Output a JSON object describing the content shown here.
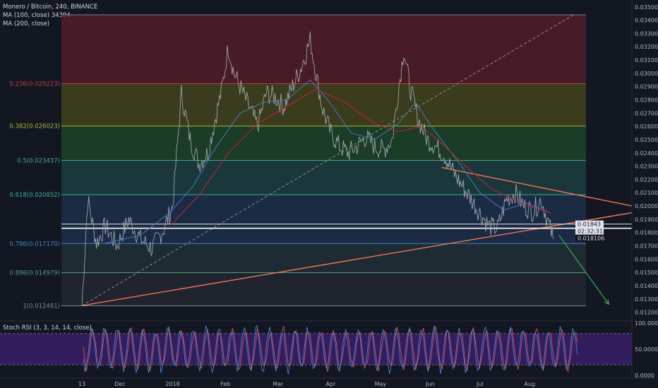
{
  "header": {
    "symbol_line": "Monero / Bitcoin, 240, BINANCE",
    "ma100_line": "MA (100, close) 34394",
    "ma200_line": "MA (200, close)"
  },
  "price_labels": {
    "current_price": "0.01843",
    "countdown": "02:32:31",
    "ma_value": "0.018106"
  },
  "rsi_panel": {
    "legend": "Stoch RSI (3, 3, 14, 14, close)",
    "ticks": [
      "100.0000",
      "50.0000",
      "0.0000"
    ]
  },
  "colors": {
    "background": "#131722",
    "price_line": "#d1d4dc",
    "ma100": "#4a79b8",
    "ma200": "#c0203a",
    "trendline": "#f2755a",
    "projection_arrow": "#3dab5c",
    "stoch_k": "#4a8fe7",
    "stoch_d": "#e35b5b",
    "rsi_band": "#3b1f6e"
  },
  "chart_data": {
    "type": "line",
    "title": "Monero / Bitcoin, 240, BINANCE",
    "x_ticks": [
      "13",
      "Dec",
      "2018",
      "Feb",
      "Mar",
      "Apr",
      "May",
      "Jun",
      "Jul",
      "Aug"
    ],
    "y_ticks": [
      "0.035000",
      "0.034000",
      "0.033000",
      "0.032000",
      "0.031000",
      "0.030000",
      "0.029000",
      "0.028000",
      "0.027000",
      "0.026000",
      "0.025000",
      "0.024000",
      "0.023000",
      "0.022000",
      "0.021000",
      "0.020000",
      "0.019000",
      "0.018000",
      "0.017000",
      "0.016000",
      "0.015000",
      "0.014000",
      "0.013000",
      "0.012000"
    ],
    "ylim": [
      0.0115,
      0.0352
    ],
    "fib_levels": [
      {
        "label": "0.236(0.029223)",
        "value": 0.029223,
        "color": "#c13b4b"
      },
      {
        "label": "0.382(0.026023)",
        "value": 0.026023,
        "color": "#a3b93a"
      },
      {
        "label": "0.5(0.023437)",
        "value": 0.023437,
        "color": "#46b07a"
      },
      {
        "label": "0.618(0.020852)",
        "value": 0.020852,
        "color": "#3fa7a0"
      },
      {
        "label": "0.786(0.017170)",
        "value": 0.01717,
        "color": "#3d86c4"
      },
      {
        "label": "0.886(0.014979)",
        "value": 0.014979,
        "color": "#4f9e7a"
      },
      {
        "label": "1(0.012481)",
        "value": 0.012481,
        "color": "#7a8a93"
      }
    ],
    "fib_top": 0.0344,
    "close_series": [
      {
        "x": 0,
        "y": 0.0125
      },
      {
        "x": 2,
        "y": 0.0205
      },
      {
        "x": 5,
        "y": 0.0172
      },
      {
        "x": 8,
        "y": 0.0185
      },
      {
        "x": 12,
        "y": 0.017
      },
      {
        "x": 16,
        "y": 0.019
      },
      {
        "x": 20,
        "y": 0.0175
      },
      {
        "x": 24,
        "y": 0.0168
      },
      {
        "x": 28,
        "y": 0.0183
      },
      {
        "x": 31,
        "y": 0.02
      },
      {
        "x": 34,
        "y": 0.0285
      },
      {
        "x": 37,
        "y": 0.025
      },
      {
        "x": 40,
        "y": 0.0232
      },
      {
        "x": 43,
        "y": 0.024
      },
      {
        "x": 45,
        "y": 0.026
      },
      {
        "x": 48,
        "y": 0.029
      },
      {
        "x": 50,
        "y": 0.032
      },
      {
        "x": 52,
        "y": 0.03
      },
      {
        "x": 55,
        "y": 0.0285
      },
      {
        "x": 58,
        "y": 0.027
      },
      {
        "x": 60,
        "y": 0.026
      },
      {
        "x": 63,
        "y": 0.0285
      },
      {
        "x": 66,
        "y": 0.0282
      },
      {
        "x": 69,
        "y": 0.0275
      },
      {
        "x": 72,
        "y": 0.029
      },
      {
        "x": 75,
        "y": 0.0305
      },
      {
        "x": 78,
        "y": 0.0325
      },
      {
        "x": 80,
        "y": 0.03
      },
      {
        "x": 82,
        "y": 0.0275
      },
      {
        "x": 85,
        "y": 0.0255
      },
      {
        "x": 88,
        "y": 0.0245
      },
      {
        "x": 91,
        "y": 0.024
      },
      {
        "x": 94,
        "y": 0.0245
      },
      {
        "x": 97,
        "y": 0.0252
      },
      {
        "x": 100,
        "y": 0.0245
      },
      {
        "x": 103,
        "y": 0.0242
      },
      {
        "x": 106,
        "y": 0.025
      },
      {
        "x": 108,
        "y": 0.0285
      },
      {
        "x": 110,
        "y": 0.0318
      },
      {
        "x": 112,
        "y": 0.029
      },
      {
        "x": 115,
        "y": 0.0265
      },
      {
        "x": 118,
        "y": 0.025
      },
      {
        "x": 121,
        "y": 0.0245
      },
      {
        "x": 124,
        "y": 0.0238
      },
      {
        "x": 127,
        "y": 0.0225
      },
      {
        "x": 130,
        "y": 0.0215
      },
      {
        "x": 133,
        "y": 0.0205
      },
      {
        "x": 136,
        "y": 0.0195
      },
      {
        "x": 139,
        "y": 0.0185
      },
      {
        "x": 142,
        "y": 0.0183
      },
      {
        "x": 145,
        "y": 0.0205
      },
      {
        "x": 148,
        "y": 0.021
      },
      {
        "x": 151,
        "y": 0.02
      },
      {
        "x": 154,
        "y": 0.0196
      },
      {
        "x": 157,
        "y": 0.0205
      },
      {
        "x": 159,
        "y": 0.019
      },
      {
        "x": 161,
        "y": 0.0175
      }
    ],
    "ma100_series": [
      {
        "x": 8,
        "y": 0.0172
      },
      {
        "x": 20,
        "y": 0.0178
      },
      {
        "x": 30,
        "y": 0.0195
      },
      {
        "x": 38,
        "y": 0.0215
      },
      {
        "x": 46,
        "y": 0.0245
      },
      {
        "x": 54,
        "y": 0.027
      },
      {
        "x": 62,
        "y": 0.0278
      },
      {
        "x": 70,
        "y": 0.028
      },
      {
        "x": 78,
        "y": 0.0295
      },
      {
        "x": 84,
        "y": 0.028
      },
      {
        "x": 92,
        "y": 0.0255
      },
      {
        "x": 100,
        "y": 0.025
      },
      {
        "x": 108,
        "y": 0.0262
      },
      {
        "x": 114,
        "y": 0.0278
      },
      {
        "x": 120,
        "y": 0.0258
      },
      {
        "x": 128,
        "y": 0.0235
      },
      {
        "x": 136,
        "y": 0.021
      },
      {
        "x": 144,
        "y": 0.0197
      },
      {
        "x": 152,
        "y": 0.0202
      },
      {
        "x": 160,
        "y": 0.0195
      }
    ],
    "ma200_series": [
      {
        "x": 30,
        "y": 0.0185
      },
      {
        "x": 40,
        "y": 0.0208
      },
      {
        "x": 50,
        "y": 0.024
      },
      {
        "x": 60,
        "y": 0.0262
      },
      {
        "x": 70,
        "y": 0.0275
      },
      {
        "x": 80,
        "y": 0.0288
      },
      {
        "x": 90,
        "y": 0.0278
      },
      {
        "x": 100,
        "y": 0.0262
      },
      {
        "x": 108,
        "y": 0.0256
      },
      {
        "x": 116,
        "y": 0.026
      },
      {
        "x": 124,
        "y": 0.0245
      },
      {
        "x": 132,
        "y": 0.0228
      },
      {
        "x": 140,
        "y": 0.0213
      },
      {
        "x": 150,
        "y": 0.0202
      },
      {
        "x": 160,
        "y": 0.0195
      }
    ],
    "trendlines": [
      {
        "from": {
          "x": 0,
          "y": 0.0125
        },
        "to": {
          "x": 188,
          "y": 0.0195
        },
        "style": "solid"
      },
      {
        "from": {
          "x": 123,
          "y": 0.0229
        },
        "to": {
          "x": 188,
          "y": 0.02
        },
        "style": "solid"
      },
      {
        "from": {
          "x": 0,
          "y": 0.0125
        },
        "to": {
          "x": 168,
          "y": 0.0344
        },
        "style": "dashed"
      }
    ],
    "horizontal_lines": [
      0.01843,
      0.01843
    ],
    "projection_arrow": {
      "from": {
        "x": 163,
        "y": 0.0178
      },
      "to": {
        "x": 180,
        "y": 0.0126
      }
    },
    "x_range": [
      0,
      185
    ],
    "x_tick_positions": [
      0,
      13,
      31,
      49,
      67,
      85,
      102,
      119,
      136,
      153
    ]
  }
}
